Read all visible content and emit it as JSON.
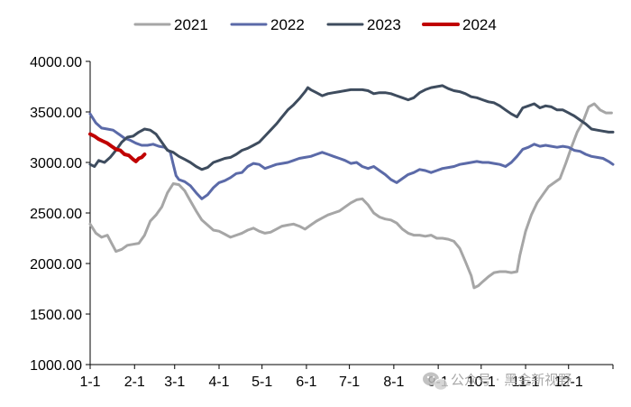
{
  "chart_data": {
    "type": "line",
    "title": "",
    "xlabel": "",
    "ylabel": "",
    "x_ticks": [
      "1-1",
      "2-1",
      "3-1",
      "4-1",
      "5-1",
      "6-1",
      "7-1",
      "8-1",
      "9-1",
      "10-1",
      "11-1",
      "12-1"
    ],
    "x_tick_days": [
      0,
      31,
      59,
      90,
      120,
      151,
      181,
      212,
      243,
      273,
      304,
      334
    ],
    "x_range_days": [
      0,
      365
    ],
    "y_ticks": [
      "1000.00",
      "1500.00",
      "2000.00",
      "2500.00",
      "3000.00",
      "3500.00",
      "4000.00"
    ],
    "y_tick_values": [
      1000,
      1500,
      2000,
      2500,
      3000,
      3500,
      4000
    ],
    "ylim": [
      1000,
      4000
    ],
    "grid": false,
    "legend_position": "top",
    "series": [
      {
        "name": "2021",
        "color": "#a6a6a6",
        "points": [
          [
            0,
            2390
          ],
          [
            4,
            2300
          ],
          [
            8,
            2260
          ],
          [
            12,
            2280
          ],
          [
            15,
            2200
          ],
          [
            18,
            2120
          ],
          [
            22,
            2140
          ],
          [
            26,
            2180
          ],
          [
            30,
            2190
          ],
          [
            34,
            2200
          ],
          [
            38,
            2280
          ],
          [
            42,
            2420
          ],
          [
            46,
            2480
          ],
          [
            50,
            2560
          ],
          [
            54,
            2700
          ],
          [
            58,
            2790
          ],
          [
            62,
            2780
          ],
          [
            66,
            2720
          ],
          [
            70,
            2620
          ],
          [
            74,
            2520
          ],
          [
            78,
            2430
          ],
          [
            82,
            2380
          ],
          [
            86,
            2330
          ],
          [
            90,
            2320
          ],
          [
            94,
            2290
          ],
          [
            98,
            2260
          ],
          [
            102,
            2280
          ],
          [
            106,
            2300
          ],
          [
            110,
            2330
          ],
          [
            114,
            2350
          ],
          [
            118,
            2320
          ],
          [
            122,
            2300
          ],
          [
            126,
            2310
          ],
          [
            130,
            2340
          ],
          [
            134,
            2370
          ],
          [
            138,
            2380
          ],
          [
            142,
            2390
          ],
          [
            146,
            2370
          ],
          [
            150,
            2340
          ],
          [
            154,
            2380
          ],
          [
            158,
            2420
          ],
          [
            162,
            2450
          ],
          [
            166,
            2480
          ],
          [
            170,
            2500
          ],
          [
            174,
            2520
          ],
          [
            178,
            2560
          ],
          [
            182,
            2600
          ],
          [
            186,
            2630
          ],
          [
            190,
            2640
          ],
          [
            194,
            2580
          ],
          [
            198,
            2500
          ],
          [
            202,
            2460
          ],
          [
            206,
            2440
          ],
          [
            210,
            2430
          ],
          [
            214,
            2400
          ],
          [
            218,
            2340
          ],
          [
            222,
            2300
          ],
          [
            226,
            2280
          ],
          [
            230,
            2280
          ],
          [
            234,
            2270
          ],
          [
            238,
            2280
          ],
          [
            242,
            2250
          ],
          [
            246,
            2250
          ],
          [
            250,
            2240
          ],
          [
            254,
            2220
          ],
          [
            258,
            2150
          ],
          [
            262,
            2020
          ],
          [
            266,
            1880
          ],
          [
            268,
            1760
          ],
          [
            271,
            1780
          ],
          [
            274,
            1820
          ],
          [
            278,
            1870
          ],
          [
            282,
            1910
          ],
          [
            286,
            1920
          ],
          [
            290,
            1920
          ],
          [
            294,
            1910
          ],
          [
            298,
            1920
          ],
          [
            300,
            2080
          ],
          [
            304,
            2320
          ],
          [
            308,
            2480
          ],
          [
            312,
            2600
          ],
          [
            316,
            2680
          ],
          [
            320,
            2760
          ],
          [
            324,
            2800
          ],
          [
            328,
            2840
          ],
          [
            332,
            2990
          ],
          [
            336,
            3150
          ],
          [
            340,
            3300
          ],
          [
            344,
            3400
          ],
          [
            348,
            3550
          ],
          [
            352,
            3580
          ],
          [
            356,
            3520
          ],
          [
            360,
            3490
          ],
          [
            364,
            3490
          ]
        ]
      },
      {
        "name": "2022",
        "color": "#5b6aa8",
        "points": [
          [
            0,
            3480
          ],
          [
            4,
            3390
          ],
          [
            8,
            3340
          ],
          [
            12,
            3330
          ],
          [
            16,
            3320
          ],
          [
            20,
            3280
          ],
          [
            24,
            3240
          ],
          [
            28,
            3220
          ],
          [
            32,
            3190
          ],
          [
            36,
            3170
          ],
          [
            40,
            3170
          ],
          [
            44,
            3180
          ],
          [
            48,
            3160
          ],
          [
            52,
            3150
          ],
          [
            56,
            3100
          ],
          [
            58,
            2980
          ],
          [
            60,
            2870
          ],
          [
            62,
            2830
          ],
          [
            66,
            2810
          ],
          [
            70,
            2770
          ],
          [
            74,
            2700
          ],
          [
            78,
            2640
          ],
          [
            82,
            2680
          ],
          [
            86,
            2750
          ],
          [
            90,
            2800
          ],
          [
            94,
            2820
          ],
          [
            98,
            2850
          ],
          [
            102,
            2890
          ],
          [
            106,
            2900
          ],
          [
            110,
            2960
          ],
          [
            114,
            2990
          ],
          [
            118,
            2980
          ],
          [
            122,
            2940
          ],
          [
            126,
            2960
          ],
          [
            130,
            2980
          ],
          [
            134,
            2990
          ],
          [
            138,
            3000
          ],
          [
            142,
            3020
          ],
          [
            146,
            3040
          ],
          [
            150,
            3050
          ],
          [
            154,
            3060
          ],
          [
            158,
            3080
          ],
          [
            162,
            3100
          ],
          [
            166,
            3080
          ],
          [
            170,
            3060
          ],
          [
            174,
            3040
          ],
          [
            178,
            3020
          ],
          [
            182,
            2990
          ],
          [
            186,
            3000
          ],
          [
            190,
            2960
          ],
          [
            194,
            2940
          ],
          [
            198,
            2960
          ],
          [
            202,
            2920
          ],
          [
            206,
            2880
          ],
          [
            210,
            2830
          ],
          [
            214,
            2800
          ],
          [
            218,
            2840
          ],
          [
            222,
            2880
          ],
          [
            226,
            2900
          ],
          [
            230,
            2930
          ],
          [
            234,
            2920
          ],
          [
            238,
            2900
          ],
          [
            242,
            2920
          ],
          [
            246,
            2940
          ],
          [
            250,
            2950
          ],
          [
            254,
            2960
          ],
          [
            258,
            2980
          ],
          [
            262,
            2990
          ],
          [
            266,
            3000
          ],
          [
            270,
            3010
          ],
          [
            274,
            3000
          ],
          [
            278,
            3000
          ],
          [
            282,
            2990
          ],
          [
            286,
            2980
          ],
          [
            290,
            2960
          ],
          [
            294,
            3000
          ],
          [
            298,
            3060
          ],
          [
            302,
            3130
          ],
          [
            306,
            3150
          ],
          [
            310,
            3180
          ],
          [
            314,
            3160
          ],
          [
            318,
            3170
          ],
          [
            322,
            3160
          ],
          [
            326,
            3150
          ],
          [
            330,
            3160
          ],
          [
            334,
            3150
          ],
          [
            338,
            3120
          ],
          [
            342,
            3110
          ],
          [
            346,
            3080
          ],
          [
            350,
            3060
          ],
          [
            354,
            3050
          ],
          [
            358,
            3040
          ],
          [
            362,
            3010
          ],
          [
            365,
            2980
          ]
        ]
      },
      {
        "name": "2023",
        "color": "#3e4c5e",
        "points": [
          [
            0,
            2980
          ],
          [
            3,
            2960
          ],
          [
            6,
            3020
          ],
          [
            10,
            3000
          ],
          [
            14,
            3050
          ],
          [
            18,
            3120
          ],
          [
            22,
            3200
          ],
          [
            26,
            3250
          ],
          [
            30,
            3260
          ],
          [
            34,
            3300
          ],
          [
            38,
            3330
          ],
          [
            42,
            3320
          ],
          [
            46,
            3280
          ],
          [
            50,
            3200
          ],
          [
            54,
            3120
          ],
          [
            58,
            3100
          ],
          [
            62,
            3060
          ],
          [
            66,
            3030
          ],
          [
            70,
            3000
          ],
          [
            74,
            2960
          ],
          [
            78,
            2930
          ],
          [
            82,
            2950
          ],
          [
            86,
            3000
          ],
          [
            90,
            3020
          ],
          [
            94,
            3040
          ],
          [
            98,
            3050
          ],
          [
            102,
            3080
          ],
          [
            106,
            3120
          ],
          [
            110,
            3140
          ],
          [
            114,
            3170
          ],
          [
            118,
            3200
          ],
          [
            122,
            3260
          ],
          [
            126,
            3320
          ],
          [
            130,
            3380
          ],
          [
            134,
            3450
          ],
          [
            138,
            3520
          ],
          [
            142,
            3570
          ],
          [
            146,
            3630
          ],
          [
            150,
            3700
          ],
          [
            152,
            3740
          ],
          [
            154,
            3720
          ],
          [
            158,
            3690
          ],
          [
            162,
            3660
          ],
          [
            166,
            3680
          ],
          [
            170,
            3690
          ],
          [
            174,
            3700
          ],
          [
            178,
            3710
          ],
          [
            182,
            3720
          ],
          [
            186,
            3720
          ],
          [
            190,
            3720
          ],
          [
            194,
            3710
          ],
          [
            198,
            3680
          ],
          [
            202,
            3690
          ],
          [
            206,
            3690
          ],
          [
            210,
            3680
          ],
          [
            214,
            3660
          ],
          [
            218,
            3640
          ],
          [
            222,
            3620
          ],
          [
            226,
            3640
          ],
          [
            230,
            3690
          ],
          [
            234,
            3720
          ],
          [
            238,
            3740
          ],
          [
            242,
            3750
          ],
          [
            246,
            3760
          ],
          [
            250,
            3730
          ],
          [
            254,
            3710
          ],
          [
            258,
            3700
          ],
          [
            262,
            3680
          ],
          [
            266,
            3650
          ],
          [
            270,
            3640
          ],
          [
            274,
            3620
          ],
          [
            278,
            3600
          ],
          [
            282,
            3590
          ],
          [
            286,
            3560
          ],
          [
            290,
            3520
          ],
          [
            294,
            3480
          ],
          [
            298,
            3450
          ],
          [
            302,
            3540
          ],
          [
            306,
            3560
          ],
          [
            310,
            3580
          ],
          [
            314,
            3540
          ],
          [
            318,
            3560
          ],
          [
            322,
            3550
          ],
          [
            326,
            3520
          ],
          [
            330,
            3520
          ],
          [
            334,
            3490
          ],
          [
            338,
            3460
          ],
          [
            342,
            3420
          ],
          [
            346,
            3380
          ],
          [
            350,
            3330
          ],
          [
            354,
            3320
          ],
          [
            358,
            3310
          ],
          [
            362,
            3300
          ],
          [
            365,
            3300
          ]
        ]
      },
      {
        "name": "2024",
        "color": "#c00000",
        "points": [
          [
            0,
            3280
          ],
          [
            3,
            3260
          ],
          [
            6,
            3230
          ],
          [
            9,
            3210
          ],
          [
            12,
            3190
          ],
          [
            15,
            3160
          ],
          [
            18,
            3130
          ],
          [
            21,
            3120
          ],
          [
            24,
            3080
          ],
          [
            27,
            3070
          ],
          [
            30,
            3030
          ],
          [
            32,
            3010
          ],
          [
            34,
            3040
          ],
          [
            36,
            3050
          ],
          [
            38,
            3080
          ]
        ]
      }
    ]
  },
  "watermark": {
    "icon_name": "wechat-icon",
    "text": "公众号 · 黑金新视野"
  }
}
